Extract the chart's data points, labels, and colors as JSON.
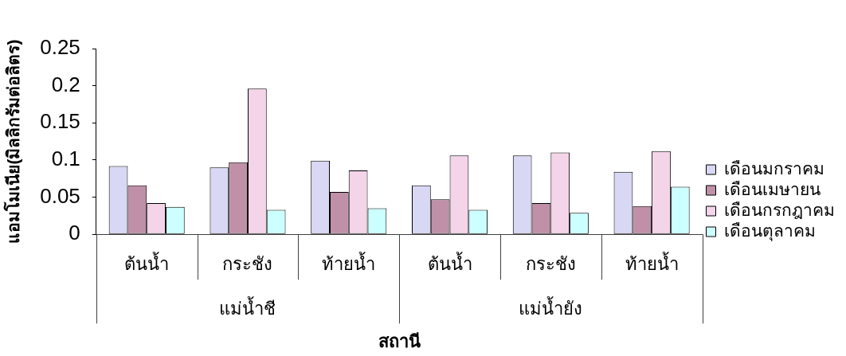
{
  "chart_data": {
    "type": "bar",
    "xlabel": "สถานี",
    "ylabel": "แอมโมเนีย(มิลลิกรัมต่อลิตร)",
    "categories": [
      "ต้นน้ำ",
      "กระชัง",
      "ท้ายน้ำ",
      "ต้นน้ำ",
      "กระชัง",
      "ท้ายน้ำ"
    ],
    "annotations": [
      "แม่น้ำชี",
      "แม่น้ำยัง"
    ],
    "series": [
      {
        "name": "เดือนมกราคม",
        "color": "#d8d8f4",
        "values": [
          0.092,
          0.09,
          0.099,
          0.066,
          0.106,
          0.084
        ]
      },
      {
        "name": "เดือนเมษายน",
        "color": "#c090a8",
        "values": [
          0.066,
          0.097,
          0.057,
          0.047,
          0.042,
          0.038
        ]
      },
      {
        "name": "เดือนกรกฎาคม",
        "color": "#f4d4e8",
        "values": [
          0.042,
          0.196,
          0.086,
          0.106,
          0.11,
          0.112
        ]
      },
      {
        "name": "เดือนตุลาคม",
        "color": "#ccffff",
        "values": [
          0.037,
          0.033,
          0.035,
          0.033,
          0.029,
          0.064
        ]
      }
    ],
    "ylim": [
      0,
      0.25
    ],
    "yticks": [
      0,
      0.05,
      0.1,
      0.15,
      0.2,
      0.25
    ],
    "legend": "right"
  }
}
